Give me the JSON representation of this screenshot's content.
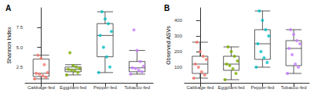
{
  "chart_data": [
    {
      "type": "boxplot",
      "title": "A",
      "y_label": "Shannon Index",
      "categories": [
        "Cabbage-fed",
        "Eggplant-fed",
        "Pepper-fed",
        "Tobacco-fed"
      ],
      "colors": [
        "#F8766D",
        "#7CAE00",
        "#00BFC4",
        "#C77CFF"
      ],
      "values": [
        [
          1.0,
          1.2,
          1.4,
          1.6,
          1.7,
          1.8,
          2.8,
          3.6,
          4.0
        ],
        [
          1.5,
          1.8,
          2.0,
          2.1,
          2.2,
          2.3,
          2.5,
          2.7,
          4.3
        ],
        [
          1.8,
          2.5,
          3.8,
          5.0,
          6.5,
          7.0,
          8.0,
          8.6,
          9.5
        ],
        [
          1.6,
          1.9,
          2.1,
          2.3,
          2.4,
          2.6,
          3.2,
          4.6,
          7.2
        ]
      ],
      "box_stats": [
        [
          1.0,
          1.3,
          1.7,
          3.5,
          4.0
        ],
        [
          1.5,
          1.9,
          2.2,
          2.5,
          2.8
        ],
        [
          1.8,
          3.8,
          6.5,
          8.0,
          9.5
        ],
        [
          1.6,
          1.9,
          2.4,
          3.2,
          4.6
        ]
      ],
      "ylim": [
        0.5,
        10
      ],
      "yticks": [
        2.5,
        {
          "value": 5,
          "label": "5.0"
        },
        7.5
      ],
      "grid": false
    },
    {
      "type": "boxplot",
      "title": "B",
      "y_label": "Observed ASVs",
      "categories": [
        "Cabbage-fed",
        "Eggplant-fed",
        "Pepper-fed",
        "Tobacco-fed"
      ],
      "colors": [
        "#F8766D",
        "#7CAE00",
        "#00BFC4",
        "#C77CFF"
      ],
      "values": [
        [
          30,
          50,
          70,
          100,
          120,
          150,
          170,
          200,
          260
        ],
        [
          20,
          60,
          90,
          110,
          120,
          140,
          170,
          200,
          230
        ],
        [
          100,
          130,
          160,
          200,
          250,
          300,
          340,
          400,
          460
        ],
        [
          60,
          100,
          120,
          180,
          220,
          250,
          270,
          310,
          340
        ]
      ],
      "box_stats": [
        [
          30,
          60,
          120,
          170,
          260
        ],
        [
          20,
          80,
          120,
          170,
          230
        ],
        [
          100,
          150,
          250,
          340,
          460
        ],
        [
          60,
          110,
          220,
          270,
          340
        ]
      ],
      "ylim": [
        0,
        480
      ],
      "yticks": [
        100,
        200,
        300,
        400
      ],
      "grid": false
    }
  ]
}
